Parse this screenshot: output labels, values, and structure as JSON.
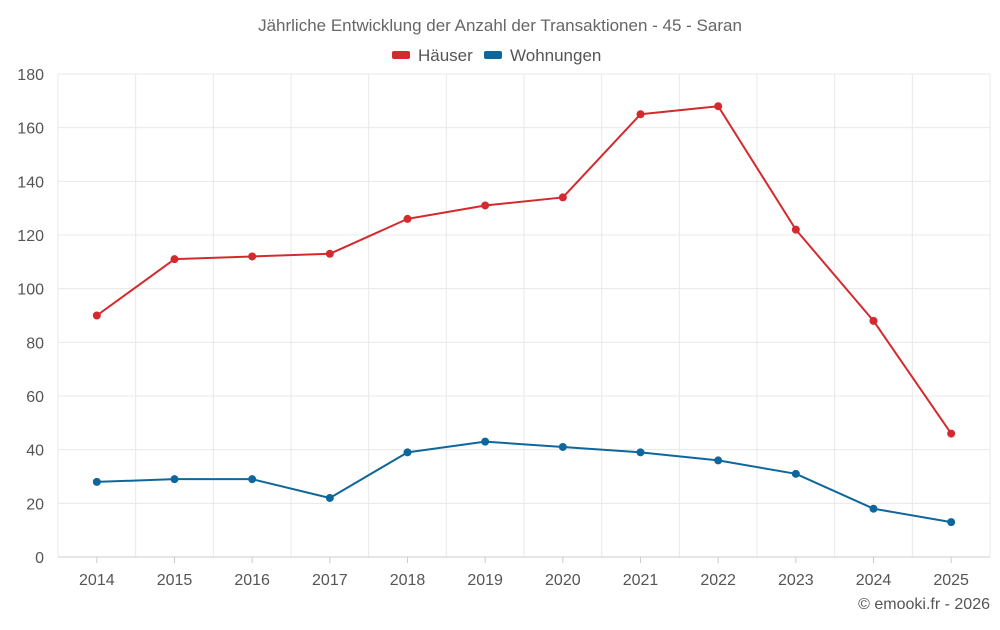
{
  "chart_data": {
    "type": "line",
    "title": "Jährliche Entwicklung der Anzahl der Transaktionen - 45 - Saran",
    "xlabel": "",
    "ylabel": "",
    "categories": [
      "2014",
      "2015",
      "2016",
      "2017",
      "2018",
      "2019",
      "2020",
      "2021",
      "2022",
      "2023",
      "2024",
      "2025"
    ],
    "ylim": [
      0,
      180
    ],
    "yticks": [
      0,
      20,
      40,
      60,
      80,
      100,
      120,
      140,
      160,
      180
    ],
    "grid": true,
    "legend_position": "top-center",
    "series": [
      {
        "name": "Häuser",
        "color": "#d42a2e",
        "values": [
          90,
          111,
          112,
          113,
          126,
          131,
          134,
          165,
          168,
          122,
          88,
          46
        ]
      },
      {
        "name": "Wohnungen",
        "color": "#0e679c",
        "values": [
          28,
          29,
          29,
          22,
          39,
          43,
          41,
          39,
          36,
          31,
          18,
          13
        ]
      }
    ],
    "credit": "© emooki.fr - 2026"
  },
  "colors": {
    "text": "#555555",
    "title": "#666666",
    "grid": "#e8e8e8",
    "axis": "#cccccc"
  }
}
